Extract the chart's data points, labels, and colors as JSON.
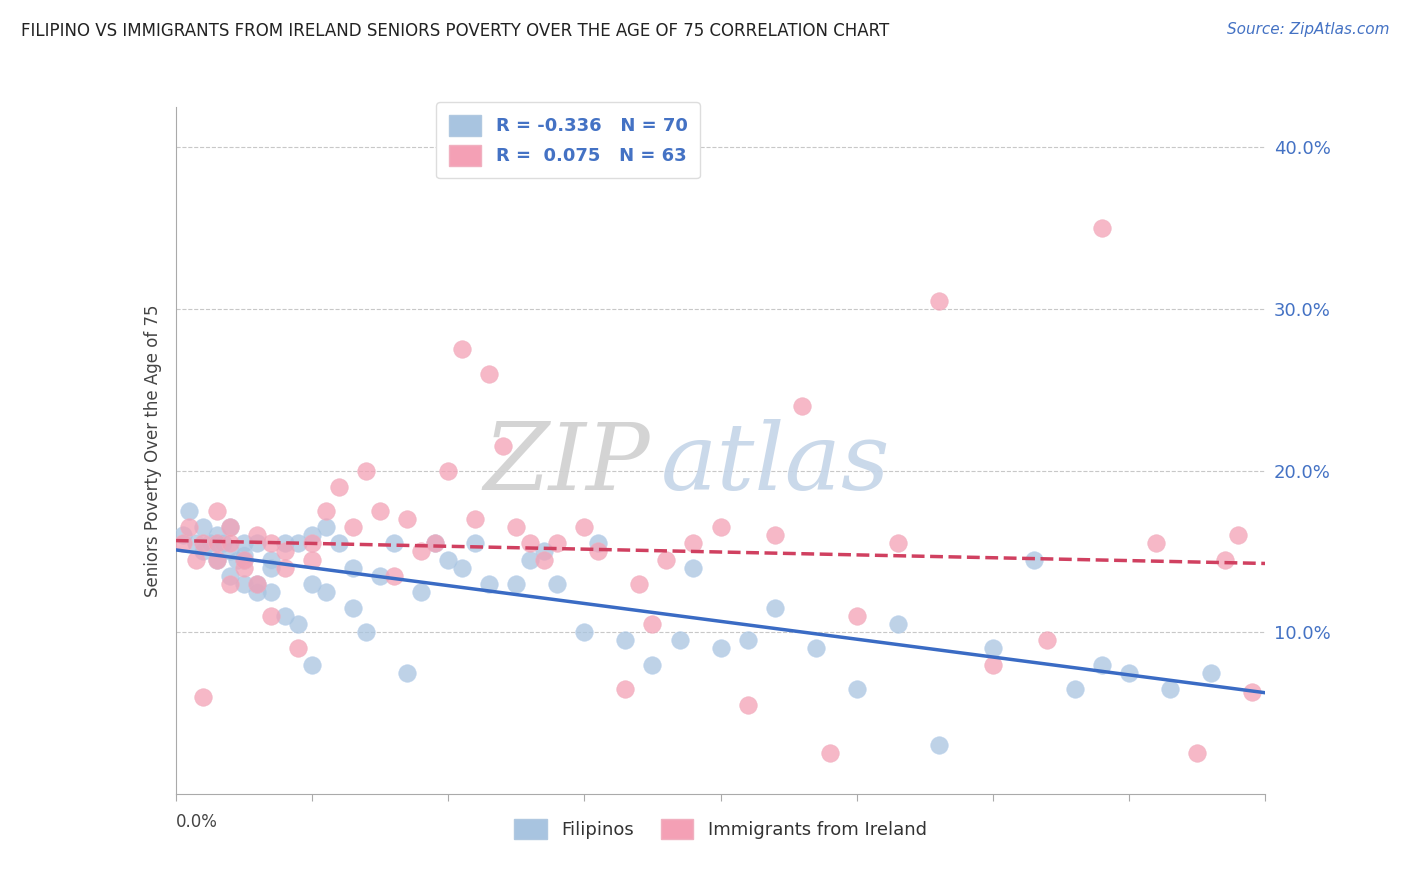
{
  "title": "FILIPINO VS IMMIGRANTS FROM IRELAND SENIORS POVERTY OVER THE AGE OF 75 CORRELATION CHART",
  "source": "Source: ZipAtlas.com",
  "ylabel": "Seniors Poverty Over the Age of 75",
  "xmin": 0.0,
  "xmax": 0.08,
  "ymin": 0.0,
  "ymax": 0.425,
  "yticks": [
    0.1,
    0.2,
    0.3,
    0.4
  ],
  "ytick_labels": [
    "10.0%",
    "20.0%",
    "30.0%",
    "40.0%"
  ],
  "series1_label": "Filipinos",
  "series2_label": "Immigrants from Ireland",
  "series1_color": "#a8c4e0",
  "series2_color": "#f4a0b5",
  "series1_line_color": "#3a6bc4",
  "series2_line_color": "#d04060",
  "R1": "-0.336",
  "N1": "70",
  "R2": "0.075",
  "N2": "63",
  "filipinos_x": [
    0.0005,
    0.001,
    0.0015,
    0.002,
    0.002,
    0.0025,
    0.003,
    0.003,
    0.003,
    0.0035,
    0.004,
    0.004,
    0.004,
    0.0045,
    0.005,
    0.005,
    0.005,
    0.005,
    0.006,
    0.006,
    0.006,
    0.007,
    0.007,
    0.007,
    0.008,
    0.008,
    0.009,
    0.009,
    0.01,
    0.01,
    0.01,
    0.011,
    0.011,
    0.012,
    0.013,
    0.013,
    0.014,
    0.015,
    0.016,
    0.017,
    0.018,
    0.019,
    0.02,
    0.021,
    0.022,
    0.023,
    0.025,
    0.026,
    0.027,
    0.028,
    0.03,
    0.031,
    0.033,
    0.035,
    0.037,
    0.038,
    0.04,
    0.042,
    0.044,
    0.047,
    0.05,
    0.053,
    0.056,
    0.06,
    0.063,
    0.066,
    0.068,
    0.07,
    0.073,
    0.076
  ],
  "filipinos_y": [
    0.16,
    0.175,
    0.155,
    0.15,
    0.165,
    0.155,
    0.145,
    0.155,
    0.16,
    0.155,
    0.15,
    0.135,
    0.165,
    0.145,
    0.13,
    0.145,
    0.155,
    0.148,
    0.13,
    0.155,
    0.125,
    0.14,
    0.145,
    0.125,
    0.11,
    0.155,
    0.155,
    0.105,
    0.16,
    0.13,
    0.08,
    0.165,
    0.125,
    0.155,
    0.14,
    0.115,
    0.1,
    0.135,
    0.155,
    0.075,
    0.125,
    0.155,
    0.145,
    0.14,
    0.155,
    0.13,
    0.13,
    0.145,
    0.15,
    0.13,
    0.1,
    0.155,
    0.095,
    0.08,
    0.095,
    0.14,
    0.09,
    0.095,
    0.115,
    0.09,
    0.065,
    0.105,
    0.03,
    0.09,
    0.145,
    0.065,
    0.08,
    0.075,
    0.065,
    0.075
  ],
  "ireland_x": [
    0.0005,
    0.001,
    0.0015,
    0.002,
    0.002,
    0.003,
    0.003,
    0.003,
    0.004,
    0.004,
    0.004,
    0.005,
    0.005,
    0.006,
    0.006,
    0.007,
    0.007,
    0.008,
    0.008,
    0.009,
    0.01,
    0.01,
    0.011,
    0.012,
    0.013,
    0.014,
    0.015,
    0.016,
    0.017,
    0.018,
    0.019,
    0.02,
    0.021,
    0.022,
    0.023,
    0.024,
    0.025,
    0.026,
    0.027,
    0.028,
    0.03,
    0.031,
    0.033,
    0.034,
    0.035,
    0.036,
    0.038,
    0.04,
    0.042,
    0.044,
    0.046,
    0.048,
    0.05,
    0.053,
    0.056,
    0.06,
    0.064,
    0.068,
    0.072,
    0.075,
    0.077,
    0.078,
    0.079
  ],
  "ireland_y": [
    0.155,
    0.165,
    0.145,
    0.155,
    0.06,
    0.175,
    0.145,
    0.155,
    0.165,
    0.13,
    0.155,
    0.14,
    0.145,
    0.16,
    0.13,
    0.155,
    0.11,
    0.14,
    0.15,
    0.09,
    0.155,
    0.145,
    0.175,
    0.19,
    0.165,
    0.2,
    0.175,
    0.135,
    0.17,
    0.15,
    0.155,
    0.2,
    0.275,
    0.17,
    0.26,
    0.215,
    0.165,
    0.155,
    0.145,
    0.155,
    0.165,
    0.15,
    0.065,
    0.13,
    0.105,
    0.145,
    0.155,
    0.165,
    0.055,
    0.16,
    0.24,
    0.025,
    0.11,
    0.155,
    0.305,
    0.08,
    0.095,
    0.35,
    0.155,
    0.025,
    0.145,
    0.16,
    0.063
  ]
}
